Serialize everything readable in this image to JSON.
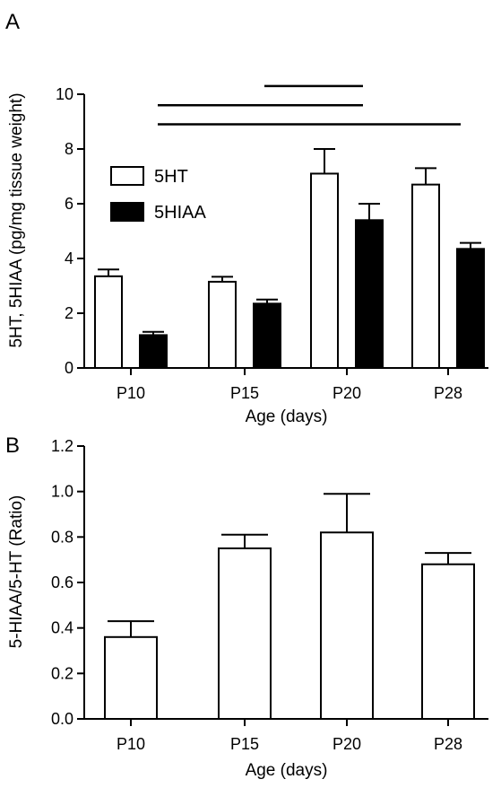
{
  "chart_data": [
    {
      "panel": "A",
      "type": "bar",
      "categories": [
        "P10",
        "P15",
        "P20",
        "P28"
      ],
      "series": [
        {
          "name": "5HT",
          "values": [
            3.35,
            3.15,
            7.1,
            6.7
          ],
          "errors": [
            0.25,
            0.18,
            0.9,
            0.6
          ],
          "fill": "#ffffff"
        },
        {
          "name": "5HIAA",
          "values": [
            1.2,
            2.35,
            5.4,
            4.35
          ],
          "errors": [
            0.12,
            0.15,
            0.6,
            0.22
          ],
          "fill": "#000000"
        }
      ],
      "xlabel": "Age (days)",
      "ylabel": "5HT, 5HIAA (pg/mg tissue weight)",
      "ylim": [
        0,
        10
      ],
      "yticks": [
        "0",
        "2",
        "4",
        "6",
        "8",
        "10"
      ],
      "ytick_values": [
        0,
        2,
        4,
        6,
        8,
        10
      ],
      "legend_placement": "top-left",
      "significance_lines": [
        {
          "from": "P15",
          "to": "P20",
          "level": 10.3
        },
        {
          "from": "P10",
          "to": "P20",
          "level": 9.6
        },
        {
          "from": "P10",
          "to": "P28",
          "level": 8.9
        }
      ]
    },
    {
      "panel": "B",
      "type": "bar",
      "categories": [
        "P10",
        "P15",
        "P20",
        "P28"
      ],
      "series": [
        {
          "name": "",
          "values": [
            0.36,
            0.75,
            0.82,
            0.68
          ],
          "errors": [
            0.07,
            0.06,
            0.17,
            0.05
          ],
          "fill": "#ffffff"
        }
      ],
      "xlabel": "Age (days)",
      "ylabel": "5-HIAA/5-HT (Ratio)",
      "ylim": [
        0,
        1.2
      ],
      "yticks": [
        "0.0",
        "0.2",
        "0.4",
        "0.6",
        "0.8",
        "1.0",
        "1.2"
      ],
      "ytick_values": [
        0,
        0.2,
        0.4,
        0.6,
        0.8,
        1.0,
        1.2
      ],
      "legend_placement": "none"
    }
  ]
}
